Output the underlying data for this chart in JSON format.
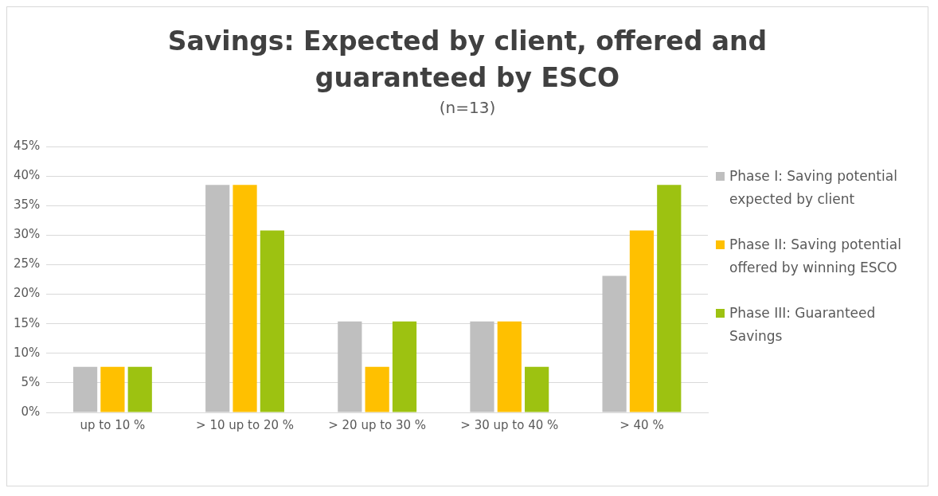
{
  "chart_data": {
    "type": "bar",
    "title": "Savings: Expected by client, offered and guaranteed by ESCO",
    "subtitle": "(n=13)",
    "categories": [
      "up to 10 %",
      "> 10 up to 20 %",
      "> 20 up to 30 %",
      "> 30 up to 40 %",
      "> 40 %"
    ],
    "series": [
      {
        "name": "Phase I: Saving potential expected by client",
        "color": "#bfbfbf",
        "values": [
          7.7,
          38.5,
          15.4,
          15.4,
          23.1
        ]
      },
      {
        "name": "Phase II: Saving potential offered by winning ESCO",
        "color": "#ffc000",
        "values": [
          7.7,
          38.5,
          7.7,
          15.4,
          30.8
        ]
      },
      {
        "name": "Phase III: Guaranteed Savings",
        "color": "#9dc211",
        "values": [
          7.7,
          30.8,
          15.4,
          7.7,
          38.5
        ]
      }
    ],
    "ylim": [
      0,
      45
    ],
    "yticks": [
      {
        "value": 0,
        "label": "0%"
      },
      {
        "value": 5,
        "label": "5%"
      },
      {
        "value": 10,
        "label": "10%"
      },
      {
        "value": 15,
        "label": "15%"
      },
      {
        "value": 20,
        "label": "20%"
      },
      {
        "value": 25,
        "label": "25%"
      },
      {
        "value": 30,
        "label": "30%"
      },
      {
        "value": 35,
        "label": "35%"
      },
      {
        "value": 40,
        "label": "40%"
      },
      {
        "value": 45,
        "label": "45%"
      }
    ],
    "grid": "y",
    "legend": "right"
  }
}
